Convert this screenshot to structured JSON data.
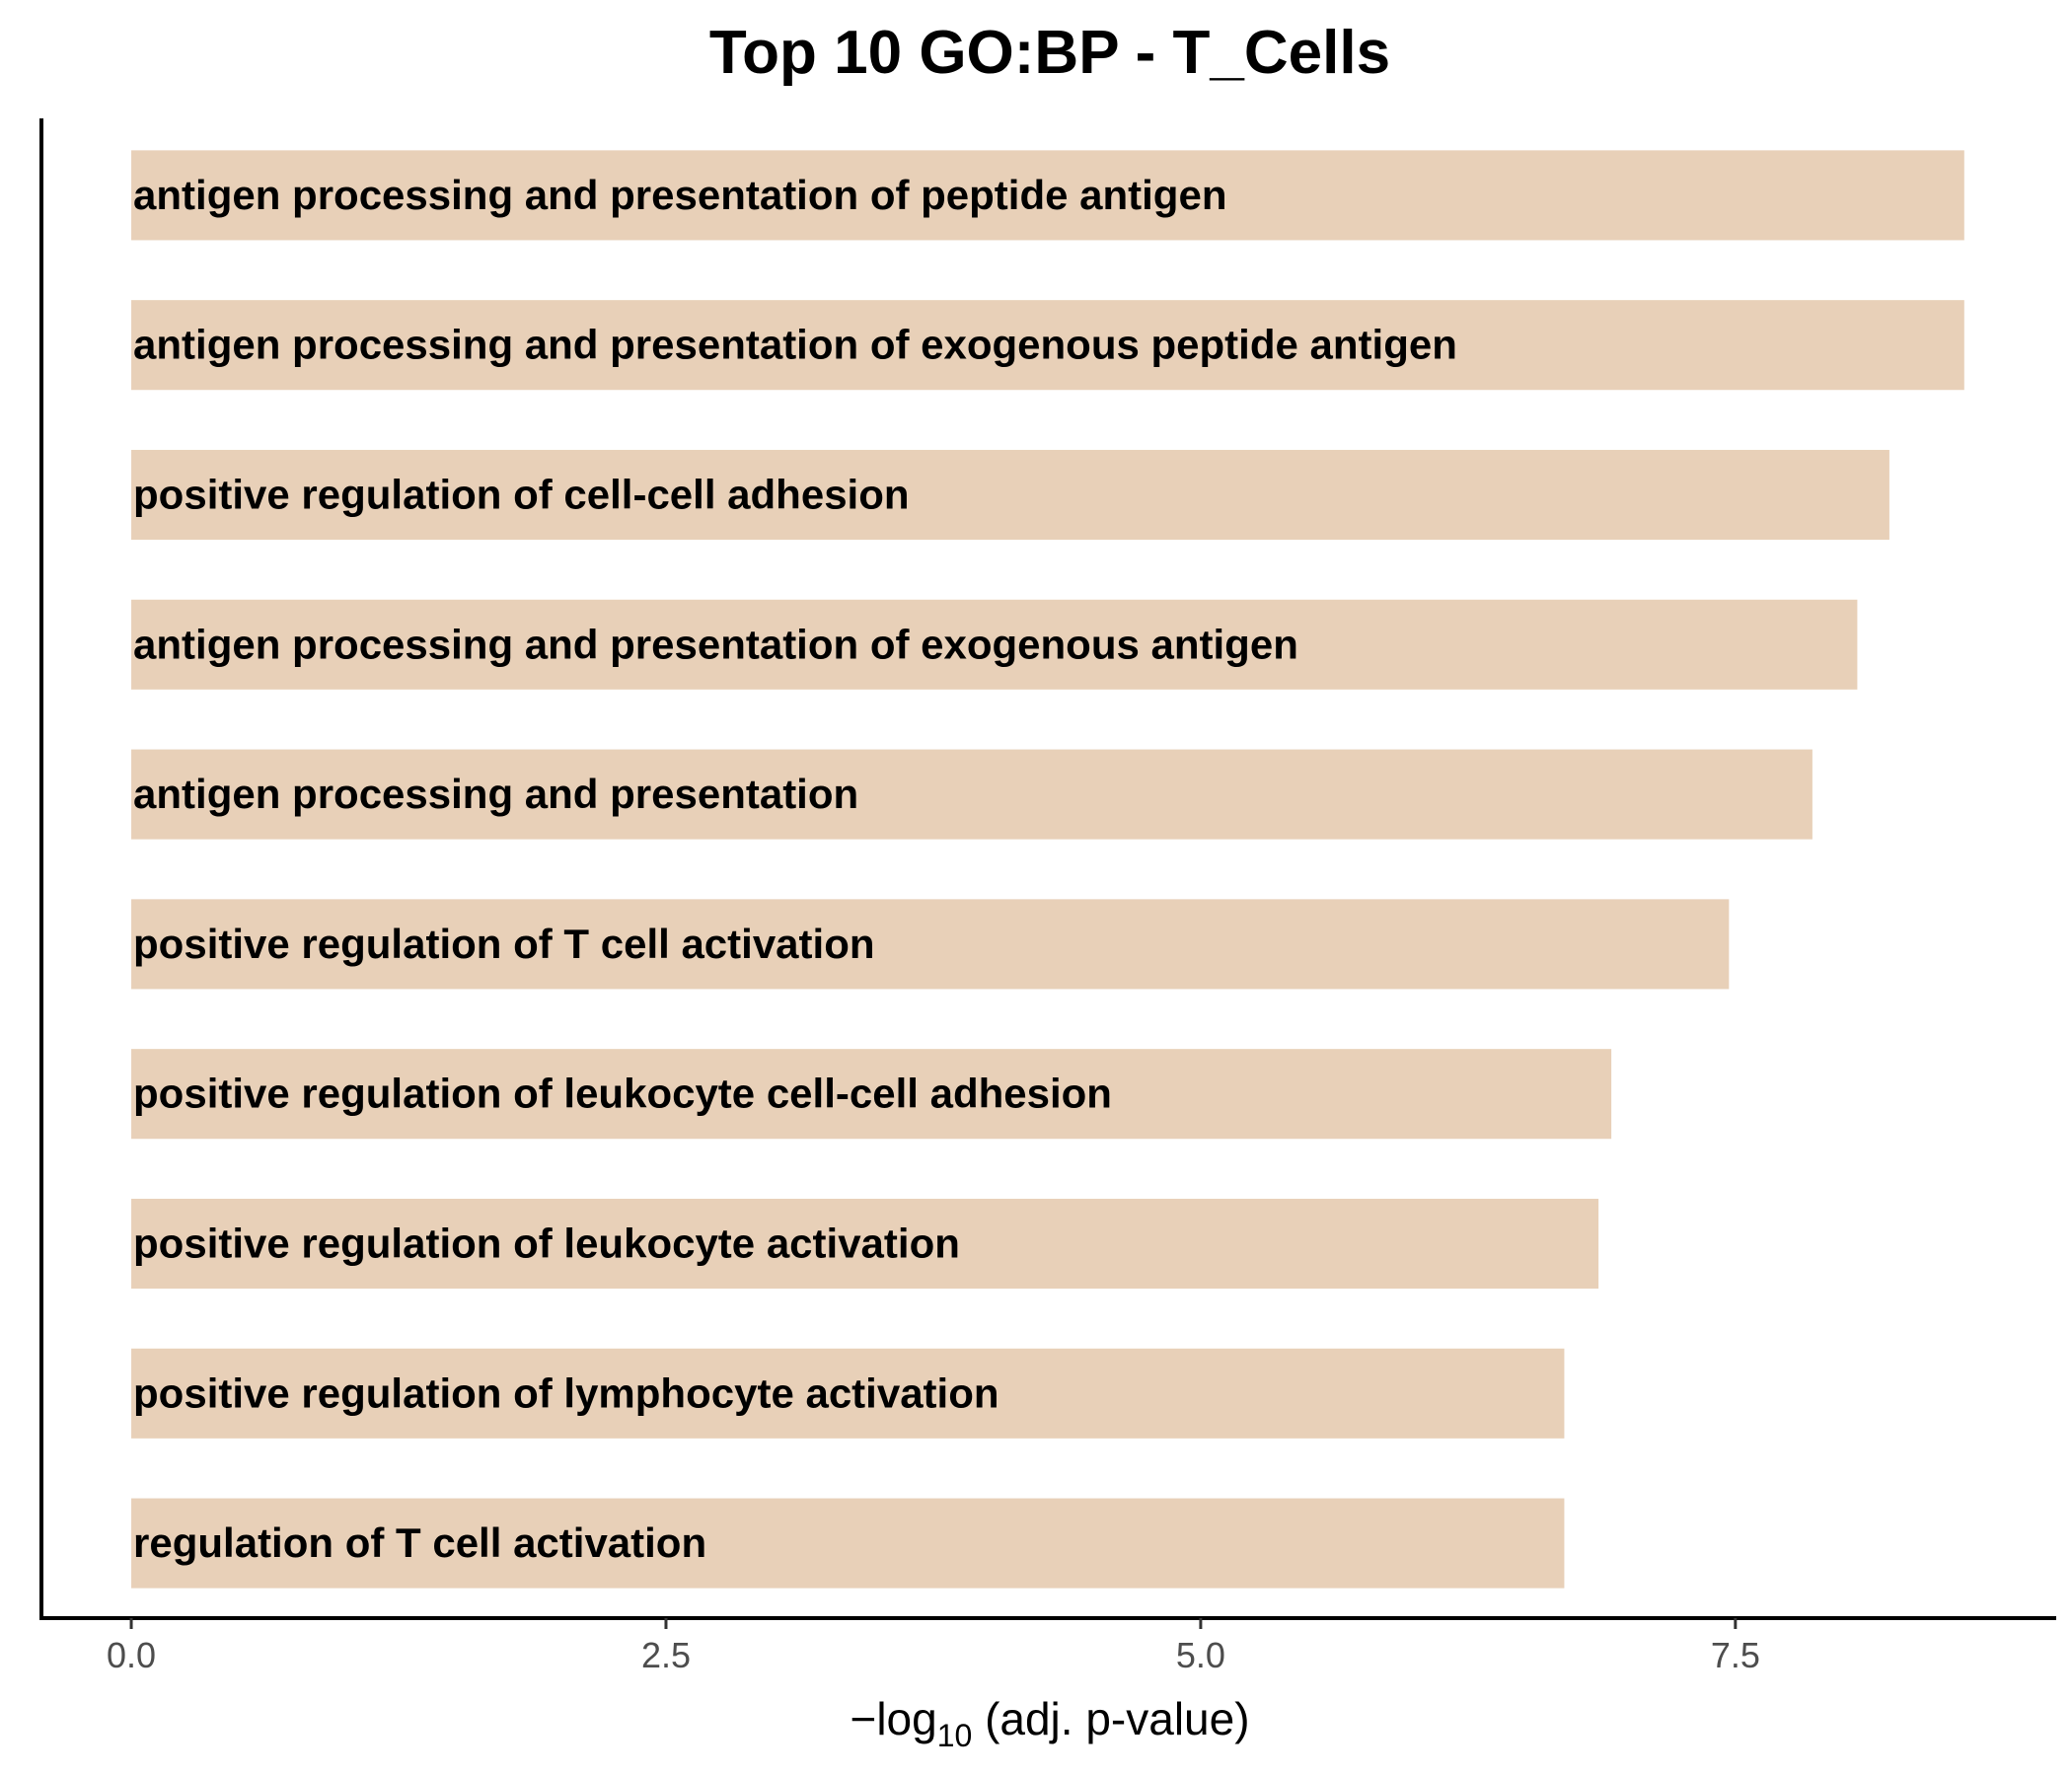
{
  "chart_data": {
    "type": "bar",
    "orientation": "horizontal",
    "title": "Top 10 GO:BP - T_Cells",
    "xlabel": {
      "prefix": "−log",
      "subscript": "10",
      "suffix": " (adj. p-value)"
    },
    "ylabel": "",
    "xlim": [
      -0.42,
      9.0
    ],
    "xticks": [
      0.0,
      2.5,
      5.0,
      7.5
    ],
    "xtick_labels": [
      "0.0",
      "2.5",
      "5.0",
      "7.5"
    ],
    "grid": false,
    "legend": "none",
    "bar_color": "#e8d0b8",
    "categories": [
      "antigen processing and presentation of peptide antigen",
      "antigen processing and presentation of exogenous peptide antigen",
      "positive regulation of cell-cell adhesion",
      "antigen processing and presentation of exogenous antigen",
      "antigen processing and presentation",
      "positive regulation of T cell activation",
      "positive regulation of leukocyte cell-cell adhesion",
      "positive regulation of leukocyte activation",
      "positive regulation of lymphocyte activation",
      "regulation of T cell activation"
    ],
    "values": [
      8.57,
      8.57,
      8.22,
      8.07,
      7.86,
      7.47,
      6.92,
      6.86,
      6.7,
      6.7
    ]
  }
}
